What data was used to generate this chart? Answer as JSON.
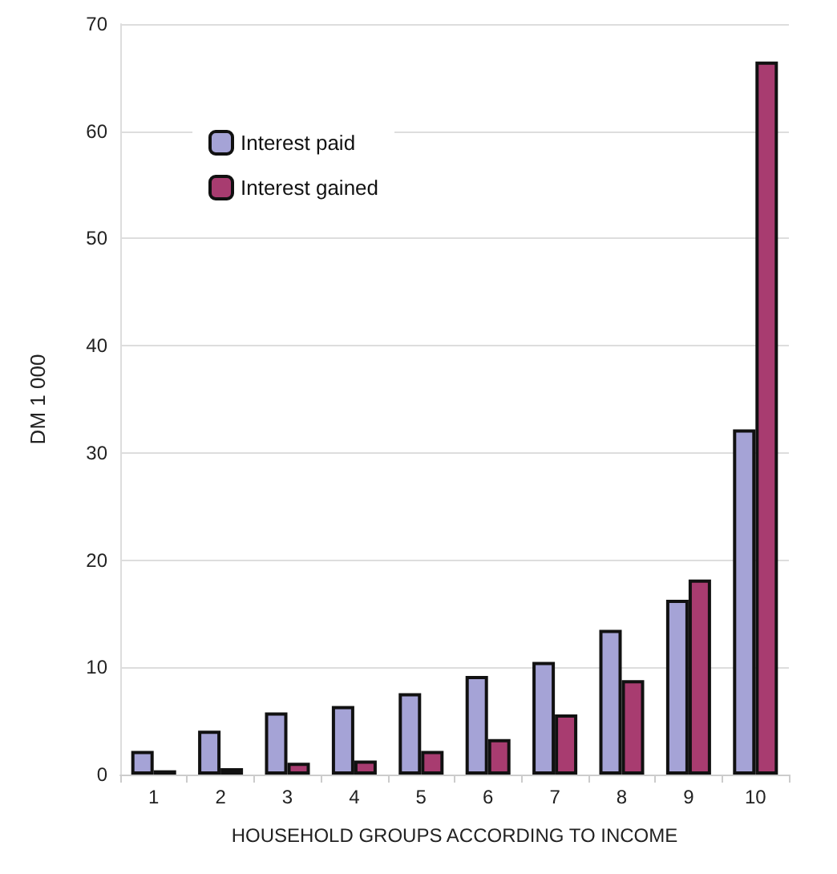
{
  "chart_data": {
    "type": "bar",
    "xlabel": "HOUSEHOLD GROUPS ACCORDING TO INCOME",
    "ylabel": "DM 1 000",
    "categories": [
      "1",
      "2",
      "3",
      "4",
      "5",
      "6",
      "7",
      "8",
      "9",
      "10"
    ],
    "series": [
      {
        "name": "Interest paid",
        "color": "#a5a3d6",
        "values": [
          2.2,
          4.1,
          5.8,
          6.4,
          7.6,
          9.2,
          10.5,
          13.5,
          16.3,
          32.2
        ]
      },
      {
        "name": "Interest gained",
        "color": "#a83c70",
        "values": [
          0.4,
          0.6,
          1.1,
          1.3,
          2.2,
          3.3,
          5.6,
          8.8,
          18.2,
          66.5
        ]
      }
    ],
    "ylim": [
      0,
      70
    ],
    "yticks": [
      0,
      10,
      20,
      30,
      40,
      50,
      60,
      70
    ],
    "grid": "y",
    "legend": "top left"
  }
}
